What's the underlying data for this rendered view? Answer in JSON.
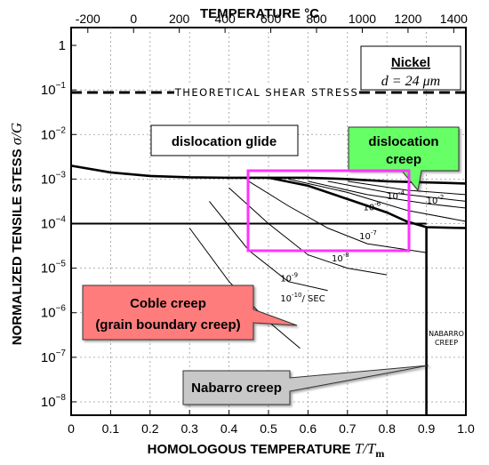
{
  "chart_data": {
    "type": "deformation-mechanism-map",
    "top_axis_title": "TEMPERATURE °C",
    "top_ticks": [
      "-200",
      "0",
      "200",
      "400",
      "600",
      "800",
      "1000",
      "1200",
      "1400"
    ],
    "bottom_axis_title": "HOMOLOGOUS TEMPERATURE",
    "bottom_axis_symbol": "T/T",
    "bottom_axis_sub": "m",
    "bottom_ticks": [
      "0",
      "0.1",
      "0.2",
      "0.3",
      "0.4",
      "0.5",
      "0.6",
      "0.7",
      "0.8",
      "0.9",
      "1.0"
    ],
    "left_axis_title": "NORMALIZED TENSILE STESS",
    "left_axis_symbol": "σ/G",
    "y_ticks": [
      {
        "base": "1",
        "exp": ""
      },
      {
        "base": "10",
        "exp": "−1"
      },
      {
        "base": "10",
        "exp": "−2"
      },
      {
        "base": "10",
        "exp": "−3"
      },
      {
        "base": "10",
        "exp": "−4"
      },
      {
        "base": "10",
        "exp": "−5"
      },
      {
        "base": "10",
        "exp": "−6"
      },
      {
        "base": "10",
        "exp": "−7"
      },
      {
        "base": "10",
        "exp": "−8"
      }
    ],
    "xlim": [
      0,
      1.0
    ],
    "ylim_log10": [
      -8.3,
      0.4
    ],
    "material": "Nickel",
    "grain_size": "d = 24 μm",
    "shear_stress_label": "THEORETICAL SHEAR STRESS",
    "regions": {
      "dislocation_glide": "dislocation glide",
      "dislocation_creep_line1": "dislocation",
      "dislocation_creep_line2": "creep",
      "coble_line1": "Coble creep",
      "coble_line2": "(grain boundary creep)",
      "nabarro": "Nabarro creep",
      "nabarro_hand_line1": "NABARRO",
      "nabarro_hand_line2": "CREEP"
    },
    "strain_rate_labels": [
      {
        "base": "10",
        "exp": "-2",
        "suffix": ""
      },
      {
        "base": "10",
        "exp": "-4",
        "suffix": ""
      },
      {
        "base": "10",
        "exp": "-6",
        "suffix": ""
      },
      {
        "base": "10",
        "exp": "-7",
        "suffix": ""
      },
      {
        "base": "10",
        "exp": "-8",
        "suffix": ""
      },
      {
        "base": "10",
        "exp": "-9",
        "suffix": ""
      },
      {
        "base": "10",
        "exp": "-10",
        "suffix": "/ SEC"
      }
    ],
    "colors": {
      "glide_box": "#ffffff",
      "disloc_creep_box": "#66ff66",
      "coble_box": "#ff7b7b",
      "nabarro_box": "#c8c8c8",
      "highlight": "#ff33ff"
    }
  }
}
